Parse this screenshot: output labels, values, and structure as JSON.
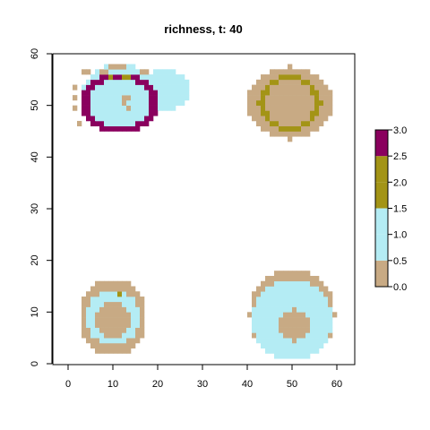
{
  "chart_data": {
    "type": "heatmap",
    "title": "richness, t: 40",
    "xlabel": "",
    "ylabel": "",
    "xlim": [
      0,
      60
    ],
    "ylim": [
      0,
      60
    ],
    "x_ticks": [
      0,
      10,
      20,
      30,
      40,
      50,
      60
    ],
    "y_ticks": [
      0,
      10,
      20,
      30,
      40,
      50,
      60
    ],
    "grid": false,
    "cell_size": 1,
    "legend": {
      "placement": "right",
      "breaks": [
        0.0,
        0.5,
        1.0,
        1.5,
        2.0,
        2.5,
        3.0
      ],
      "tick_labels": [
        "0.0",
        "0.5",
        "1.0",
        "1.5",
        "2.0",
        "2.5",
        "3.0"
      ],
      "colors": [
        "#c8aa84",
        "#b4ecf4",
        "#b4ecf4",
        "#a39416",
        "#a39416",
        "#8a005e"
      ]
    },
    "categories": [
      {
        "value": 0,
        "color": "#c8aa84"
      },
      {
        "value": 1,
        "color": "#b4ecf4"
      },
      {
        "value": 2,
        "color": "#a39416"
      },
      {
        "value": 3,
        "color": "#8a005e"
      }
    ],
    "patches": [
      {
        "region": "top-left",
        "background": {
          "shape": "ellipse",
          "center": [
            11.5,
            51.5
          ],
          "radius": [
            8.5,
            6.5
          ],
          "value": 1,
          "extra_lobe": {
            "center": [
              21.5,
              53.0
            ],
            "radius": [
              6.0,
              4.0
            ]
          }
        },
        "tan_fringe": [
          [
            3,
            56
          ],
          [
            4,
            56
          ],
          [
            7,
            56
          ],
          [
            8,
            56
          ],
          [
            9,
            57
          ],
          [
            10,
            57
          ],
          [
            11,
            57
          ],
          [
            12,
            57
          ],
          [
            16,
            56
          ],
          [
            17,
            56
          ],
          [
            1,
            53
          ],
          [
            1,
            51
          ],
          [
            1,
            49
          ],
          [
            2,
            46
          ],
          [
            12,
            51
          ],
          [
            13,
            51
          ],
          [
            12,
            50
          ],
          [
            13,
            49
          ]
        ],
        "ring": {
          "center": [
            11.5,
            50.5
          ],
          "radius": [
            8.0,
            5.5
          ],
          "value": 3
        },
        "olive_cells": [
          [
            9,
            55
          ],
          [
            13,
            55
          ],
          [
            12,
            55
          ]
        ]
      },
      {
        "region": "top-right",
        "background": {
          "shape": "ellipse",
          "center": [
            49.5,
            50.5
          ],
          "radius": [
            9.5,
            7.0
          ],
          "value": 0
        },
        "ring": {
          "center": [
            49.5,
            50.5
          ],
          "radius": [
            6.5,
            5.0
          ],
          "value": 2
        }
      },
      {
        "region": "bottom-left",
        "background": {
          "shape": "ellipse",
          "center": [
            10.0,
            9.0
          ],
          "radius": [
            7.5,
            7.5
          ],
          "value": 0
        },
        "inner": {
          "shape": "ellipse",
          "center": [
            10.0,
            9.0
          ],
          "radius": [
            6.0,
            5.5
          ],
          "value": 1
        },
        "core": {
          "shape": "ellipse",
          "center": [
            10.0,
            8.5
          ],
          "radius": [
            3.8,
            3.5
          ],
          "value": 0
        },
        "olive_cells": [
          [
            11,
            13
          ]
        ]
      },
      {
        "region": "bottom-right",
        "background": {
          "shape": "ellipse",
          "center": [
            50.0,
            9.5
          ],
          "radius": [
            9.5,
            9.0
          ],
          "value": 0
        },
        "inner": {
          "shape": "ellipse",
          "center": [
            50.0,
            8.5
          ],
          "radius": [
            8.8,
            7.8
          ],
          "value": 1
        },
        "core": {
          "shape": "ellipse",
          "center": [
            50.5,
            7.5
          ],
          "radius": [
            3.5,
            3.0
          ],
          "value": 0
        }
      }
    ]
  }
}
